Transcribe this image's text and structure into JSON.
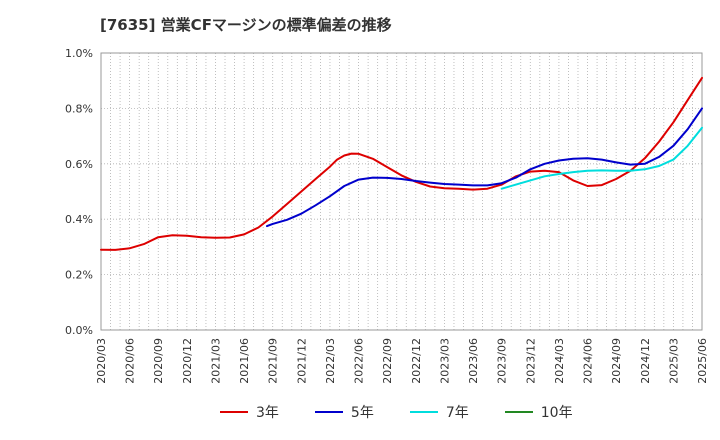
{
  "chart_data": {
    "type": "line",
    "title": "[7635]  営業CFマージンの標準偏差の推移",
    "xlabel": "",
    "ylabel": "",
    "ylim": [
      0,
      1.0
    ],
    "yticks": [
      "0.0%",
      "0.2%",
      "0.4%",
      "0.6%",
      "0.8%",
      "1.0%"
    ],
    "yticks_values": [
      0,
      0.2,
      0.4,
      0.6,
      0.8,
      1.0
    ],
    "categories": [
      "2020/03",
      "2020/06",
      "2020/09",
      "2020/12",
      "2021/03",
      "2021/06",
      "2021/09",
      "2021/12",
      "2022/03",
      "2022/06",
      "2022/09",
      "2022/12",
      "2023/03",
      "2023/06",
      "2023/09",
      "2023/12",
      "2024/03",
      "2024/06",
      "2024/09",
      "2024/12",
      "2025/03",
      "2025/06"
    ],
    "grid": true,
    "legend_placement": "bottom",
    "series": [
      {
        "name": "3年",
        "color": "#dd0000",
        "points": [
          [
            0,
            0.29
          ],
          [
            0.5,
            0.289
          ],
          [
            1,
            0.295
          ],
          [
            1.5,
            0.31
          ],
          [
            2,
            0.335
          ],
          [
            2.5,
            0.342
          ],
          [
            3,
            0.34
          ],
          [
            3.5,
            0.335
          ],
          [
            4,
            0.333
          ],
          [
            4.5,
            0.334
          ],
          [
            5,
            0.345
          ],
          [
            5.5,
            0.37
          ],
          [
            6,
            0.41
          ],
          [
            6.5,
            0.455
          ],
          [
            7,
            0.5
          ],
          [
            7.5,
            0.545
          ],
          [
            8,
            0.59
          ],
          [
            8.25,
            0.615
          ],
          [
            8.5,
            0.63
          ],
          [
            8.75,
            0.637
          ],
          [
            9,
            0.636
          ],
          [
            9.5,
            0.618
          ],
          [
            10,
            0.588
          ],
          [
            10.5,
            0.558
          ],
          [
            11,
            0.535
          ],
          [
            11.5,
            0.518
          ],
          [
            12,
            0.512
          ],
          [
            12.5,
            0.51
          ],
          [
            13,
            0.507
          ],
          [
            13.5,
            0.51
          ],
          [
            14,
            0.525
          ],
          [
            14.5,
            0.555
          ],
          [
            15,
            0.572
          ],
          [
            15.5,
            0.575
          ],
          [
            16,
            0.57
          ],
          [
            16.5,
            0.54
          ],
          [
            17,
            0.52
          ],
          [
            17.5,
            0.523
          ],
          [
            18,
            0.545
          ],
          [
            18.5,
            0.575
          ],
          [
            19,
            0.62
          ],
          [
            19.5,
            0.68
          ],
          [
            20,
            0.75
          ],
          [
            20.5,
            0.83
          ],
          [
            21,
            0.91
          ]
        ]
      },
      {
        "name": "5年",
        "color": "#0000cc",
        "points": [
          [
            5.8,
            0.375
          ],
          [
            6,
            0.383
          ],
          [
            6.5,
            0.398
          ],
          [
            7,
            0.42
          ],
          [
            7.5,
            0.45
          ],
          [
            8,
            0.483
          ],
          [
            8.5,
            0.52
          ],
          [
            9,
            0.543
          ],
          [
            9.5,
            0.55
          ],
          [
            10,
            0.549
          ],
          [
            10.5,
            0.545
          ],
          [
            11,
            0.538
          ],
          [
            11.5,
            0.532
          ],
          [
            12,
            0.527
          ],
          [
            12.5,
            0.525
          ],
          [
            13,
            0.522
          ],
          [
            13.5,
            0.522
          ],
          [
            14,
            0.53
          ],
          [
            14.5,
            0.55
          ],
          [
            15,
            0.58
          ],
          [
            15.5,
            0.6
          ],
          [
            16,
            0.612
          ],
          [
            16.5,
            0.618
          ],
          [
            17,
            0.62
          ],
          [
            17.5,
            0.615
          ],
          [
            18,
            0.605
          ],
          [
            18.5,
            0.597
          ],
          [
            19,
            0.6
          ],
          [
            19.5,
            0.625
          ],
          [
            20,
            0.665
          ],
          [
            20.5,
            0.725
          ],
          [
            21,
            0.8
          ]
        ]
      },
      {
        "name": "7年",
        "color": "#00dddd",
        "points": [
          [
            14,
            0.51
          ],
          [
            14.5,
            0.525
          ],
          [
            15,
            0.54
          ],
          [
            15.5,
            0.555
          ],
          [
            16,
            0.563
          ],
          [
            16.5,
            0.57
          ],
          [
            17,
            0.575
          ],
          [
            17.5,
            0.576
          ],
          [
            18,
            0.575
          ],
          [
            18.5,
            0.575
          ],
          [
            19,
            0.58
          ],
          [
            19.5,
            0.592
          ],
          [
            20,
            0.615
          ],
          [
            20.5,
            0.665
          ],
          [
            21,
            0.73
          ]
        ]
      },
      {
        "name": "10年",
        "color": "#228822",
        "points": []
      }
    ]
  }
}
